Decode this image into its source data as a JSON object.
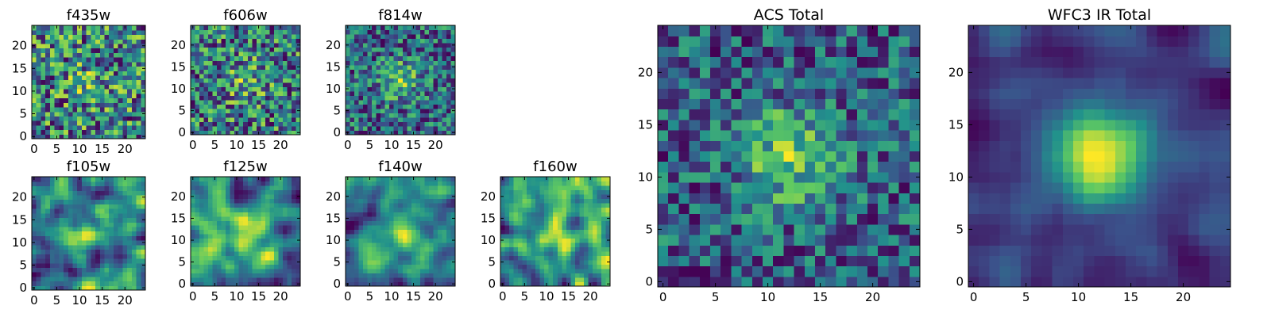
{
  "chart_data": [
    {
      "type": "heatmap",
      "title": "f435w",
      "grid": [
        25,
        25
      ],
      "xlim": [
        0,
        24
      ],
      "ylim": [
        0,
        24
      ],
      "xticks": [
        "0",
        "5",
        "10",
        "15",
        "20"
      ],
      "yticks": [
        "0",
        "5",
        "10",
        "15",
        "20"
      ],
      "colormap": "viridis",
      "source_peak": [
        12,
        12
      ],
      "source_strength": 0.15,
      "noise": 0.85,
      "smooth": false,
      "seed": 11
    },
    {
      "type": "heatmap",
      "title": "f606w",
      "grid": [
        25,
        25
      ],
      "xlim": [
        0,
        24
      ],
      "ylim": [
        0,
        24
      ],
      "xticks": [
        "0",
        "5",
        "10",
        "15",
        "20"
      ],
      "yticks": [
        "0",
        "5",
        "10",
        "15",
        "20"
      ],
      "colormap": "viridis",
      "source_peak": [
        12,
        12
      ],
      "source_strength": 0.2,
      "noise": 0.8,
      "smooth": false,
      "seed": 23
    },
    {
      "type": "heatmap",
      "title": "f814w",
      "grid": [
        25,
        25
      ],
      "xlim": [
        0,
        24
      ],
      "ylim": [
        0,
        24
      ],
      "xticks": [
        "0",
        "5",
        "10",
        "15",
        "20"
      ],
      "yticks": [
        "0",
        "5",
        "10",
        "15",
        "20"
      ],
      "colormap": "viridis",
      "source_peak": [
        12,
        12
      ],
      "source_strength": 0.35,
      "noise": 0.7,
      "smooth": false,
      "seed": 37
    },
    {
      "type": "heatmap",
      "title": "f105w",
      "grid": [
        25,
        25
      ],
      "xlim": [
        0,
        24
      ],
      "ylim": [
        0,
        24
      ],
      "xticks": [
        "0",
        "5",
        "10",
        "15",
        "20"
      ],
      "yticks": [
        "0",
        "5",
        "10",
        "15",
        "20"
      ],
      "colormap": "viridis",
      "source_peak": [
        12,
        12
      ],
      "source_strength": 0.3,
      "noise": 0.75,
      "smooth": true,
      "seed": 41
    },
    {
      "type": "heatmap",
      "title": "f125w",
      "grid": [
        25,
        25
      ],
      "xlim": [
        0,
        24
      ],
      "ylim": [
        0,
        24
      ],
      "xticks": [
        "0",
        "5",
        "10",
        "15",
        "20"
      ],
      "yticks": [
        "0",
        "5",
        "10",
        "15",
        "20"
      ],
      "colormap": "viridis",
      "source_peak": [
        13,
        11
      ],
      "source_strength": 0.3,
      "noise": 0.75,
      "smooth": true,
      "seed": 53
    },
    {
      "type": "heatmap",
      "title": "f140w",
      "grid": [
        25,
        25
      ],
      "xlim": [
        0,
        24
      ],
      "ylim": [
        0,
        24
      ],
      "xticks": [
        "0",
        "5",
        "10",
        "15",
        "20"
      ],
      "yticks": [
        "0",
        "5",
        "10",
        "15",
        "20"
      ],
      "colormap": "viridis",
      "source_peak": [
        12,
        12
      ],
      "source_strength": 0.3,
      "noise": 0.75,
      "smooth": true,
      "seed": 67
    },
    {
      "type": "heatmap",
      "title": "f160w",
      "grid": [
        25,
        25
      ],
      "xlim": [
        0,
        24
      ],
      "ylim": [
        0,
        24
      ],
      "xticks": [
        "0",
        "5",
        "10",
        "15",
        "20"
      ],
      "yticks": [
        "0",
        "5",
        "10",
        "15",
        "20"
      ],
      "colormap": "viridis",
      "source_peak": [
        12,
        12
      ],
      "source_strength": 0.3,
      "noise": 0.8,
      "smooth": true,
      "seed": 79
    },
    {
      "type": "heatmap",
      "title": "ACS Total",
      "grid": [
        25,
        25
      ],
      "xlim": [
        0,
        24
      ],
      "ylim": [
        0,
        24
      ],
      "xticks": [
        "0",
        "5",
        "10",
        "15",
        "20"
      ],
      "yticks": [
        "0",
        "5",
        "10",
        "15",
        "20"
      ],
      "colormap": "viridis",
      "source_peak": [
        12,
        12
      ],
      "source_strength": 0.45,
      "noise": 0.6,
      "smooth": false,
      "seed": 97
    },
    {
      "type": "heatmap",
      "title": "WFC3 IR Total",
      "grid": [
        25,
        25
      ],
      "xlim": [
        0,
        24
      ],
      "ylim": [
        0,
        24
      ],
      "xticks": [
        "0",
        "5",
        "10",
        "15",
        "20"
      ],
      "yticks": [
        "0",
        "5",
        "10",
        "15",
        "20"
      ],
      "colormap": "viridis",
      "source_peak": [
        12,
        12
      ],
      "source_strength": 0.75,
      "noise": 0.35,
      "smooth": true,
      "seed": 113
    }
  ]
}
